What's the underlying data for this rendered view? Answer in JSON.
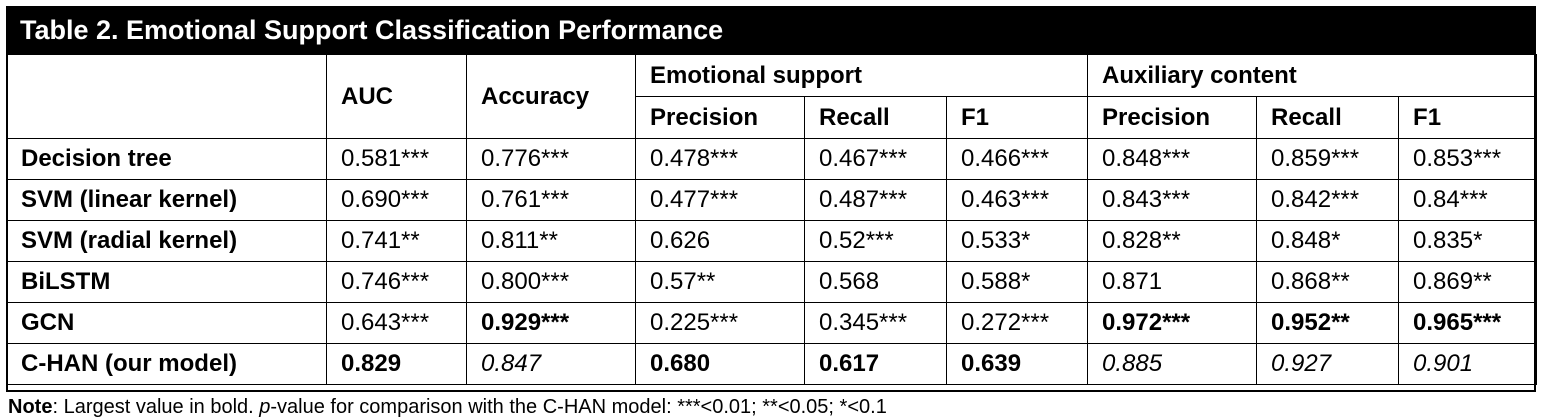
{
  "title": "Table 2. Emotional Support Classification Performance",
  "header": {
    "auc": "AUC",
    "accuracy": "Accuracy",
    "group_emotional": "Emotional support",
    "group_auxiliary": "Auxiliary content",
    "precision": "Precision",
    "recall": "Recall",
    "f1": "F1"
  },
  "rows": [
    {
      "label": "Decision tree",
      "cells": [
        {
          "v": "0.581***",
          "style": "normal"
        },
        {
          "v": "0.776***",
          "style": "normal"
        },
        {
          "v": "0.478***",
          "style": "normal"
        },
        {
          "v": "0.467***",
          "style": "normal"
        },
        {
          "v": "0.466***",
          "style": "normal"
        },
        {
          "v": "0.848***",
          "style": "normal"
        },
        {
          "v": "0.859***",
          "style": "normal"
        },
        {
          "v": "0.853***",
          "style": "normal"
        }
      ]
    },
    {
      "label": "SVM (linear kernel)",
      "cells": [
        {
          "v": "0.690***",
          "style": "normal"
        },
        {
          "v": "0.761***",
          "style": "normal"
        },
        {
          "v": "0.477***",
          "style": "normal"
        },
        {
          "v": "0.487***",
          "style": "normal"
        },
        {
          "v": "0.463***",
          "style": "normal"
        },
        {
          "v": "0.843***",
          "style": "normal"
        },
        {
          "v": "0.842***",
          "style": "normal"
        },
        {
          "v": "0.84***",
          "style": "normal"
        }
      ]
    },
    {
      "label": "SVM (radial kernel)",
      "cells": [
        {
          "v": "0.741**",
          "style": "normal"
        },
        {
          "v": "0.811**",
          "style": "normal"
        },
        {
          "v": "0.626",
          "style": "normal"
        },
        {
          "v": "0.52***",
          "style": "normal"
        },
        {
          "v": "0.533*",
          "style": "normal"
        },
        {
          "v": "0.828**",
          "style": "normal"
        },
        {
          "v": "0.848*",
          "style": "normal"
        },
        {
          "v": "0.835*",
          "style": "normal"
        }
      ]
    },
    {
      "label": "BiLSTM",
      "cells": [
        {
          "v": "0.746***",
          "style": "normal"
        },
        {
          "v": "0.800***",
          "style": "normal"
        },
        {
          "v": "0.57**",
          "style": "normal"
        },
        {
          "v": "0.568",
          "style": "normal"
        },
        {
          "v": "0.588*",
          "style": "normal"
        },
        {
          "v": "0.871",
          "style": "normal"
        },
        {
          "v": "0.868**",
          "style": "normal"
        },
        {
          "v": "0.869**",
          "style": "normal"
        }
      ]
    },
    {
      "label": "GCN",
      "cells": [
        {
          "v": "0.643***",
          "style": "normal"
        },
        {
          "v": "0.929***",
          "style": "bold"
        },
        {
          "v": "0.225***",
          "style": "normal"
        },
        {
          "v": "0.345***",
          "style": "normal"
        },
        {
          "v": "0.272***",
          "style": "normal"
        },
        {
          "v": "0.972***",
          "style": "bold"
        },
        {
          "v": "0.952**",
          "style": "bold"
        },
        {
          "v": "0.965***",
          "style": "bold"
        }
      ]
    },
    {
      "label": "C-HAN (our model)",
      "cells": [
        {
          "v": "0.829",
          "style": "bold"
        },
        {
          "v": "0.847",
          "style": "italic"
        },
        {
          "v": "0.680",
          "style": "bold"
        },
        {
          "v": "0.617",
          "style": "bold"
        },
        {
          "v": "0.639",
          "style": "bold"
        },
        {
          "v": "0.885",
          "style": "italic"
        },
        {
          "v": "0.927",
          "style": "italic"
        },
        {
          "v": "0.901",
          "style": "italic"
        }
      ]
    }
  ],
  "note": {
    "label": "Note",
    "text_1": ": Largest value in bold. ",
    "p": "p",
    "text_2": "-value for comparison with the C-HAN model: ***<0.01; **<0.05; *<0.1"
  }
}
